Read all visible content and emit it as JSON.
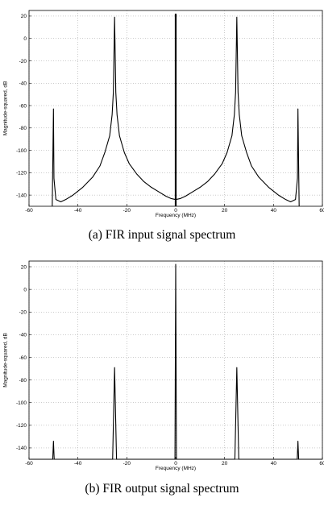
{
  "chart_data": [
    {
      "type": "line",
      "caption": "(a) FIR input signal spectrum",
      "xlabel": "Frequency (MHz)",
      "ylabel": "Magnitude-squared, dB",
      "xlim": [
        -60,
        60
      ],
      "ylim": [
        -150,
        25
      ],
      "xticks": [
        -60,
        -40,
        -20,
        0,
        20,
        40,
        60
      ],
      "yticks": [
        20,
        0,
        -20,
        -40,
        -60,
        -80,
        -100,
        -120,
        -140
      ],
      "grid": true,
      "noise_floor_db": -150,
      "peaks": [
        {
          "x": -50,
          "y": -63
        },
        {
          "x": -25,
          "y": 19
        },
        {
          "x": 0,
          "y": 22
        },
        {
          "x": 25,
          "y": 19
        },
        {
          "x": 50,
          "y": -63
        }
      ],
      "series": [
        {
          "x": [
            -50.5,
            -50,
            -49.8,
            -49,
            -47,
            -45,
            -42,
            -38,
            -34,
            -31,
            -29,
            -27,
            -26,
            -25.5,
            -25,
            -24.5,
            -24,
            -23,
            -21,
            -19,
            -16,
            -13,
            -10,
            -7,
            -4,
            -2,
            0,
            2,
            4,
            7,
            10,
            13,
            16,
            19,
            21,
            23,
            24,
            24.5,
            25,
            25.5,
            26,
            27,
            29,
            31,
            34,
            38,
            42,
            45,
            47,
            49,
            49.8,
            50,
            50.5
          ],
          "y": [
            -150,
            -63,
            -125,
            -144,
            -146,
            -144,
            -140,
            -133,
            -124,
            -114,
            -102,
            -87,
            -68,
            -48,
            19,
            -48,
            -68,
            -87,
            -102,
            -112,
            -121,
            -128,
            -133,
            -137,
            -141,
            -143,
            -144,
            -143,
            -141,
            -137,
            -133,
            -128,
            -121,
            -112,
            -102,
            -87,
            -68,
            -48,
            19,
            -48,
            -68,
            -87,
            -102,
            -114,
            -124,
            -133,
            -140,
            -144,
            -146,
            -144,
            -125,
            -63,
            -150
          ]
        }
      ],
      "stems": [
        {
          "x": 0,
          "y": 22
        }
      ]
    },
    {
      "type": "line",
      "caption": "(b) FIR output signal spectrum",
      "xlabel": "Frequency (MHz)",
      "ylabel": "Magnitude-squared, dB",
      "xlim": [
        -60,
        60
      ],
      "ylim": [
        -150,
        25
      ],
      "xticks": [
        -60,
        -40,
        -20,
        0,
        20,
        40,
        60
      ],
      "yticks": [
        20,
        0,
        -20,
        -40,
        -60,
        -80,
        -100,
        -120,
        -140
      ],
      "grid": true,
      "noise_floor_db": -150,
      "peaks": [
        {
          "x": -50,
          "y": -134
        },
        {
          "x": -25,
          "y": -69
        },
        {
          "x": 0,
          "y": 22
        },
        {
          "x": 25,
          "y": -69
        },
        {
          "x": 50,
          "y": -134
        }
      ],
      "series": [
        {
          "x": [
            -60,
            -50.3,
            -50,
            -49.7,
            -25.8,
            -25.4,
            -25,
            -24.6,
            -24.2,
            -0.3,
            0,
            0.3,
            24.2,
            24.6,
            25,
            25.4,
            25.8,
            49.7,
            50,
            50.3,
            60
          ],
          "y": [
            -150,
            -150,
            -134,
            -150,
            -150,
            -110,
            -69,
            -110,
            -150,
            -150,
            22,
            -150,
            -150,
            -110,
            -69,
            -110,
            -150,
            -150,
            -134,
            -150,
            -150
          ]
        }
      ],
      "stems": []
    }
  ]
}
